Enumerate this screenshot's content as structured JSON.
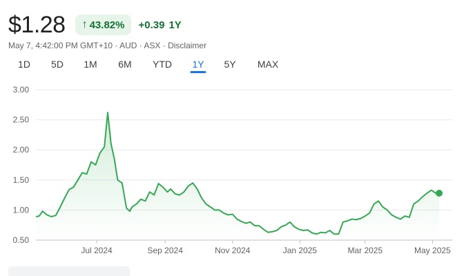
{
  "quote": {
    "price": "$1.28",
    "percent_change": "43.82%",
    "change_arrow_icon": "arrow-up-icon",
    "abs_change": "+0.39",
    "period": "1Y",
    "meta": "May 7, 4:42:00 PM GMT+10 · AUD · ASX · ",
    "disclaimer": "Disclaimer",
    "positive_color": "#137333",
    "badge_bg": "#e6f4ea"
  },
  "ranges": [
    {
      "label": "1D",
      "active": false
    },
    {
      "label": "5D",
      "active": false
    },
    {
      "label": "1M",
      "active": false
    },
    {
      "label": "6M",
      "active": false
    },
    {
      "label": "YTD",
      "active": false
    },
    {
      "label": "1Y",
      "active": true
    },
    {
      "label": "5Y",
      "active": false
    },
    {
      "label": "MAX",
      "active": false
    }
  ],
  "chart_data": {
    "type": "area",
    "title": "",
    "xlabel": "",
    "ylabel": "",
    "ylim": [
      0.5,
      3.0
    ],
    "yticks": [
      "3.00",
      "2.50",
      "2.00",
      "1.50",
      "1.00",
      "0.50"
    ],
    "xlim": [
      "2024-05-07",
      "2025-05-07"
    ],
    "xticks": [
      {
        "label": "Jul 2024",
        "date": "2024-07-01"
      },
      {
        "label": "Sep 2024",
        "date": "2024-09-01"
      },
      {
        "label": "Nov 2024",
        "date": "2024-11-01"
      },
      {
        "label": "Jan 2025",
        "date": "2025-01-01"
      },
      {
        "label": "Mar 2025",
        "date": "2025-03-01"
      },
      {
        "label": "May 2025",
        "date": "2025-05-01"
      }
    ],
    "grid": "horizontal",
    "line_color": "#34a853",
    "series": [
      {
        "x": [
          "2024-05-07",
          "2024-05-10",
          "2024-05-13",
          "2024-05-17",
          "2024-05-21",
          "2024-05-25",
          "2024-05-29",
          "2024-06-02",
          "2024-06-06",
          "2024-06-10",
          "2024-06-14",
          "2024-06-18",
          "2024-06-22",
          "2024-06-26",
          "2024-06-30",
          "2024-07-04",
          "2024-07-08",
          "2024-07-11",
          "2024-07-14",
          "2024-07-17",
          "2024-07-20",
          "2024-07-24",
          "2024-07-28",
          "2024-07-31",
          "2024-08-02",
          "2024-08-06",
          "2024-08-10",
          "2024-08-14",
          "2024-08-18",
          "2024-08-22",
          "2024-08-26",
          "2024-08-30",
          "2024-09-03",
          "2024-09-06",
          "2024-09-10",
          "2024-09-14",
          "2024-09-18",
          "2024-09-22",
          "2024-09-26",
          "2024-09-30",
          "2024-10-04",
          "2024-10-08",
          "2024-10-12",
          "2024-10-16",
          "2024-10-20",
          "2024-10-24",
          "2024-10-28",
          "2024-11-01",
          "2024-11-05",
          "2024-11-09",
          "2024-11-13",
          "2024-11-17",
          "2024-11-21",
          "2024-11-25",
          "2024-11-29",
          "2024-12-03",
          "2024-12-07",
          "2024-12-11",
          "2024-12-15",
          "2024-12-19",
          "2024-12-23",
          "2024-12-27",
          "2024-12-31",
          "2025-01-04",
          "2025-01-08",
          "2025-01-12",
          "2025-01-16",
          "2025-01-20",
          "2025-01-24",
          "2025-01-28",
          "2025-02-01",
          "2025-02-05",
          "2025-02-09",
          "2025-02-13",
          "2025-02-17",
          "2025-02-21",
          "2025-02-25",
          "2025-03-01",
          "2025-03-05",
          "2025-03-09",
          "2025-03-13",
          "2025-03-17",
          "2025-03-21",
          "2025-03-25",
          "2025-03-29",
          "2025-04-02",
          "2025-04-06",
          "2025-04-10",
          "2025-04-14",
          "2025-04-18",
          "2025-04-22",
          "2025-04-26",
          "2025-04-30",
          "2025-05-04",
          "2025-05-07"
        ],
        "y": [
          0.89,
          0.9,
          0.98,
          0.92,
          0.89,
          0.91,
          1.05,
          1.2,
          1.34,
          1.38,
          1.5,
          1.62,
          1.6,
          1.8,
          1.75,
          1.95,
          2.05,
          2.62,
          2.1,
          1.85,
          1.5,
          1.45,
          1.03,
          0.98,
          1.05,
          1.1,
          1.18,
          1.15,
          1.3,
          1.25,
          1.44,
          1.38,
          1.3,
          1.35,
          1.27,
          1.25,
          1.3,
          1.4,
          1.45,
          1.35,
          1.2,
          1.1,
          1.05,
          1.0,
          1.0,
          0.95,
          0.92,
          0.93,
          0.85,
          0.81,
          0.78,
          0.8,
          0.74,
          0.74,
          0.68,
          0.63,
          0.64,
          0.66,
          0.72,
          0.75,
          0.8,
          0.72,
          0.68,
          0.66,
          0.67,
          0.62,
          0.6,
          0.63,
          0.62,
          0.66,
          0.6,
          0.6,
          0.8,
          0.82,
          0.85,
          0.84,
          0.86,
          0.9,
          0.95,
          1.1,
          1.15,
          1.05,
          1.0,
          0.92,
          0.88,
          0.85,
          0.9,
          0.88,
          1.1,
          1.15,
          1.22,
          1.28,
          1.33,
          1.28,
          1.28
        ]
      }
    ]
  }
}
